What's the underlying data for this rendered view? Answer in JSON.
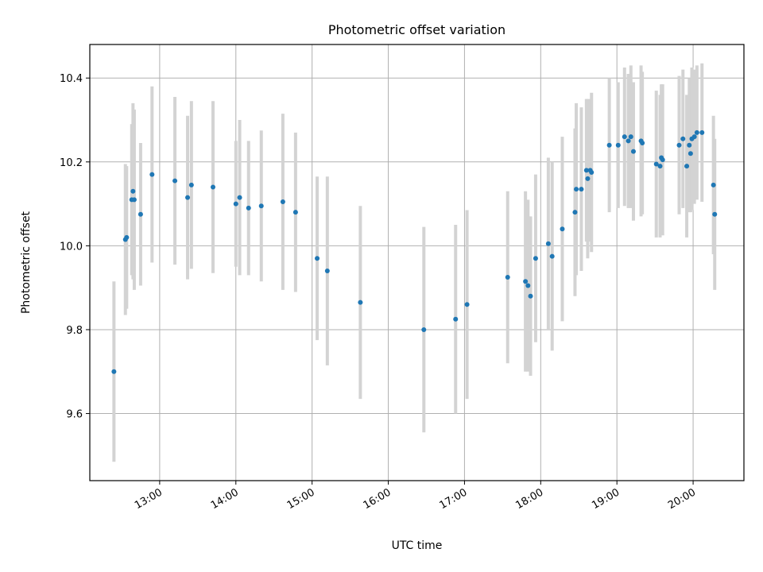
{
  "chart_data": {
    "type": "scatter",
    "title": "Photometric offset variation",
    "xlabel": "UTC time",
    "ylabel": "Photometric offset",
    "x_unit": "UTC time (HH:MM)",
    "xlim": [
      "12:05",
      "20:40"
    ],
    "ylim": [
      9.44,
      10.48
    ],
    "x_ticks": [
      "13:00",
      "14:00",
      "15:00",
      "16:00",
      "17:00",
      "18:00",
      "19:00",
      "20:00"
    ],
    "y_ticks": [
      "9.6",
      "9.8",
      "10.0",
      "10.2",
      "10.4"
    ],
    "y_tick_values": [
      9.6,
      9.8,
      10.0,
      10.2,
      10.4
    ],
    "grid": true,
    "legend": false,
    "marker_color": "#1f77b4",
    "errorbar_color": "#d3d3d3",
    "points": [
      {
        "x": "12:24",
        "y": 9.7,
        "err": 0.215
      },
      {
        "x": "12:33",
        "y": 10.015,
        "err": 0.18
      },
      {
        "x": "12:34",
        "y": 10.02,
        "err": 0.17
      },
      {
        "x": "12:38",
        "y": 10.11,
        "err": 0.18
      },
      {
        "x": "12:39",
        "y": 10.13,
        "err": 0.21
      },
      {
        "x": "12:40",
        "y": 10.11,
        "err": 0.215
      },
      {
        "x": "12:45",
        "y": 10.075,
        "err": 0.17
      },
      {
        "x": "12:54",
        "y": 10.17,
        "err": 0.21
      },
      {
        "x": "13:12",
        "y": 10.155,
        "err": 0.2
      },
      {
        "x": "13:22",
        "y": 10.115,
        "err": 0.195
      },
      {
        "x": "13:25",
        "y": 10.145,
        "err": 0.2
      },
      {
        "x": "13:42",
        "y": 10.14,
        "err": 0.205
      },
      {
        "x": "14:00",
        "y": 10.1,
        "err": 0.15
      },
      {
        "x": "14:03",
        "y": 10.115,
        "err": 0.185
      },
      {
        "x": "14:10",
        "y": 10.09,
        "err": 0.16
      },
      {
        "x": "14:20",
        "y": 10.095,
        "err": 0.18
      },
      {
        "x": "14:37",
        "y": 10.105,
        "err": 0.21
      },
      {
        "x": "14:47",
        "y": 10.08,
        "err": 0.19
      },
      {
        "x": "15:04",
        "y": 9.97,
        "err": 0.195
      },
      {
        "x": "15:12",
        "y": 9.94,
        "err": 0.225
      },
      {
        "x": "15:38",
        "y": 9.865,
        "err": 0.23
      },
      {
        "x": "16:28",
        "y": 9.8,
        "err": 0.245
      },
      {
        "x": "16:53",
        "y": 9.825,
        "err": 0.225
      },
      {
        "x": "17:02",
        "y": 9.86,
        "err": 0.225
      },
      {
        "x": "17:34",
        "y": 9.925,
        "err": 0.205
      },
      {
        "x": "17:48",
        "y": 9.915,
        "err": 0.215
      },
      {
        "x": "17:50",
        "y": 9.905,
        "err": 0.205
      },
      {
        "x": "17:52",
        "y": 9.88,
        "err": 0.19
      },
      {
        "x": "17:56",
        "y": 9.97,
        "err": 0.2
      },
      {
        "x": "18:06",
        "y": 10.005,
        "err": 0.205
      },
      {
        "x": "18:09",
        "y": 9.975,
        "err": 0.225
      },
      {
        "x": "18:17",
        "y": 10.04,
        "err": 0.22
      },
      {
        "x": "18:27",
        "y": 10.08,
        "err": 0.2
      },
      {
        "x": "18:28",
        "y": 10.135,
        "err": 0.205
      },
      {
        "x": "18:32",
        "y": 10.135,
        "err": 0.195
      },
      {
        "x": "18:36",
        "y": 10.18,
        "err": 0.17
      },
      {
        "x": "18:37",
        "y": 10.16,
        "err": 0.19
      },
      {
        "x": "18:39",
        "y": 10.18,
        "err": 0.17
      },
      {
        "x": "18:40",
        "y": 10.175,
        "err": 0.19
      },
      {
        "x": "18:54",
        "y": 10.24,
        "err": 0.16
      },
      {
        "x": "19:01",
        "y": 10.24,
        "err": 0.15
      },
      {
        "x": "19:06",
        "y": 10.26,
        "err": 0.165
      },
      {
        "x": "19:09",
        "y": 10.25,
        "err": 0.16
      },
      {
        "x": "19:11",
        "y": 10.26,
        "err": 0.17
      },
      {
        "x": "19:13",
        "y": 10.225,
        "err": 0.165
      },
      {
        "x": "19:19",
        "y": 10.25,
        "err": 0.18
      },
      {
        "x": "19:20",
        "y": 10.245,
        "err": 0.17
      },
      {
        "x": "19:31",
        "y": 10.195,
        "err": 0.175
      },
      {
        "x": "19:34",
        "y": 10.19,
        "err": 0.17
      },
      {
        "x": "19:35",
        "y": 10.21,
        "err": 0.175
      },
      {
        "x": "19:36",
        "y": 10.205,
        "err": 0.18
      },
      {
        "x": "19:49",
        "y": 10.24,
        "err": 0.165
      },
      {
        "x": "19:52",
        "y": 10.255,
        "err": 0.165
      },
      {
        "x": "19:55",
        "y": 10.19,
        "err": 0.17
      },
      {
        "x": "19:57",
        "y": 10.24,
        "err": 0.16
      },
      {
        "x": "19:58",
        "y": 10.22,
        "err": 0.14
      },
      {
        "x": "19:59",
        "y": 10.255,
        "err": 0.17
      },
      {
        "x": "20:01",
        "y": 10.26,
        "err": 0.16
      },
      {
        "x": "20:03",
        "y": 10.27,
        "err": 0.16
      },
      {
        "x": "20:07",
        "y": 10.27,
        "err": 0.165
      },
      {
        "x": "20:16",
        "y": 10.145,
        "err": 0.165
      },
      {
        "x": "20:17",
        "y": 10.075,
        "err": 0.18
      }
    ]
  }
}
